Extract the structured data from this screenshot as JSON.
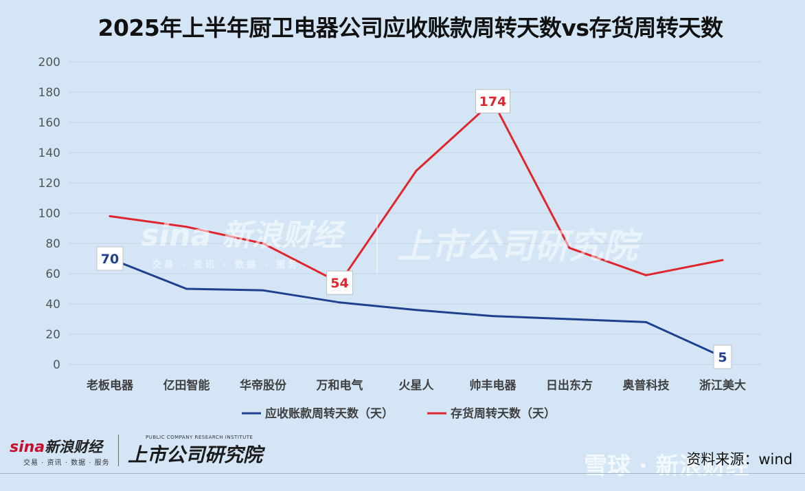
{
  "title": "2025年上半年厨卫电器公司应收账款周转天数vs存货周转天数",
  "source_label": "资料来源：wind",
  "logos": {
    "sina_brand": "sina",
    "sina_name": "新浪财经",
    "sina_sub": "交易 · 资讯 · 数据 · 服务",
    "research_small": "PUBLIC COMPANY RESEARCH INSTITUTE",
    "research_big": "上市公司研究院",
    "xueqiu": "雪球",
    "xueqiu_suffix": "新浪财经"
  },
  "colors": {
    "background": "#d4e6f5",
    "receivable_series": "#1f3f8f",
    "inventory_series": "#e0252d",
    "gridline": "#c3d3e0"
  },
  "chart_data": {
    "type": "line",
    "title": "2025年上半年厨卫电器公司应收账款周转天数vs存货周转天数",
    "categories": [
      "老板电器",
      "亿田智能",
      "华帝股份",
      "万和电气",
      "火星人",
      "帅丰电器",
      "日出东方",
      "奥普科技",
      "浙江美大"
    ],
    "series": [
      {
        "name": "应收账款周转天数（天）",
        "color": "#1f3f8f",
        "values": [
          70,
          50,
          49,
          41,
          36,
          32,
          30,
          28,
          5
        ],
        "labels": [
          {
            "index": 0,
            "text": "70"
          },
          {
            "index": 8,
            "text": "5"
          }
        ]
      },
      {
        "name": "存货周转天数（天）",
        "color": "#e0252d",
        "values": [
          98,
          91,
          80,
          54,
          128,
          174,
          77,
          59,
          69
        ],
        "labels": [
          {
            "index": 3,
            "text": "54"
          },
          {
            "index": 5,
            "text": "174"
          }
        ]
      }
    ],
    "ylim": [
      0,
      200
    ],
    "yticks": [
      0,
      20,
      40,
      60,
      80,
      100,
      120,
      140,
      160,
      180,
      200
    ],
    "grid": true,
    "legend": "bottom"
  }
}
